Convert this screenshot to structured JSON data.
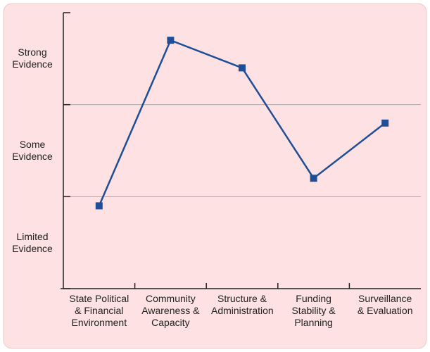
{
  "chart_data": {
    "type": "line",
    "categories": [
      "State Political & Financial Environment",
      "Community Awareness & Capacity",
      "Structure & Administration",
      "Funding Stability & Planning",
      "Surveillance & Evaluation"
    ],
    "values": [
      0.9,
      2.7,
      2.4,
      1.2,
      1.8
    ],
    "color": "#1f4e96",
    "ylim": [
      0,
      3
    ],
    "yticks": [
      0,
      1,
      2,
      3
    ],
    "grid": true,
    "bands": [
      {
        "label": "Limited Evidence",
        "from": 0,
        "to": 1
      },
      {
        "label": "Some Evidence",
        "from": 1,
        "to": 2
      },
      {
        "label": "Strong Evidence",
        "from": 2,
        "to": 3
      }
    ]
  }
}
